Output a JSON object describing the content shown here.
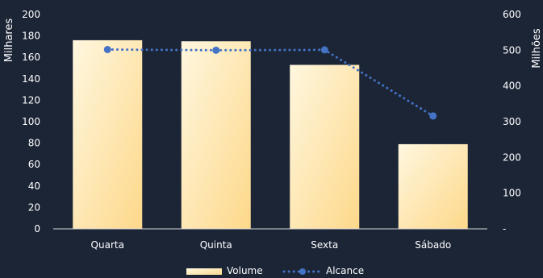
{
  "colors": {
    "background": "#1b2536",
    "text": "#ffffff",
    "axis": "#d9d9d9",
    "bar_light": "#fff7df",
    "bar_dark": "#fdd88a",
    "line": "#4472c4"
  },
  "chart_data": {
    "type": "bar",
    "categories": [
      "Quarta",
      "Quinta",
      "Sexta",
      "Sábado"
    ],
    "series": [
      {
        "name": "Volume",
        "type": "bar",
        "axis": "left",
        "values": [
          176,
          175,
          153,
          79
        ]
      },
      {
        "name": "Alcance",
        "type": "line",
        "axis": "right",
        "style": "dotted",
        "values": [
          502,
          500,
          501,
          316
        ]
      }
    ],
    "ylabel": "Milhares",
    "y2label": "Milhões",
    "ylim": [
      0,
      200
    ],
    "y2lim": [
      0,
      600
    ],
    "yticks": [
      "0",
      "20",
      "40",
      "60",
      "80",
      "100",
      "120",
      "140",
      "160",
      "180",
      "200"
    ],
    "y2ticks": [
      "-",
      "100",
      "200",
      "300",
      "400",
      "500",
      "600"
    ],
    "grid": false,
    "legend_position": "bottom"
  }
}
